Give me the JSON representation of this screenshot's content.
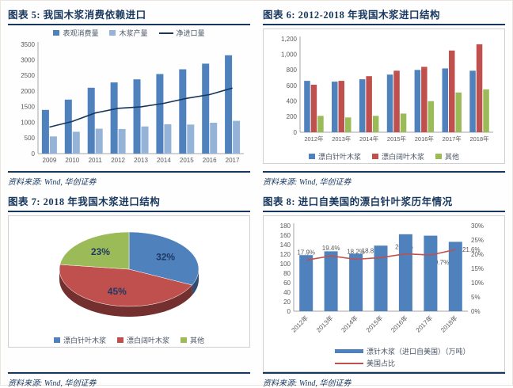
{
  "chart_data": [
    {
      "id": "figure-5",
      "type": "bar",
      "title": "图表 5: 我国木浆消费依赖进口",
      "source": "资料来源: Wind, 华创证券",
      "categories": [
        "2009",
        "2010",
        "2011",
        "2012",
        "2013",
        "2014",
        "2015",
        "2016",
        "2017"
      ],
      "series": [
        {
          "name": "表观消费量",
          "type": "bar",
          "color": "#4F81BD",
          "values": [
            1400,
            1730,
            2110,
            2280,
            2380,
            2550,
            2700,
            2880,
            3150
          ]
        },
        {
          "name": "木浆产量",
          "type": "bar",
          "color": "#95B3D7",
          "values": [
            550,
            700,
            800,
            790,
            870,
            940,
            930,
            990,
            1050
          ]
        },
        {
          "name": "净进口量",
          "type": "line",
          "color": "#17375E",
          "values": [
            850,
            1030,
            1300,
            1450,
            1500,
            1610,
            1770,
            1890,
            2100
          ]
        }
      ],
      "ylim": [
        0,
        3500
      ],
      "ytick_step": 500,
      "grid": false,
      "legend_position": "top"
    },
    {
      "id": "figure-6",
      "type": "bar",
      "title": "图表 6: 2012-2018 年我国木浆进口结构",
      "source": "资料来源: Wind, 华创证券",
      "categories": [
        "2012年",
        "2013年",
        "2014年",
        "2015年",
        "2016年",
        "2017年",
        "2018年"
      ],
      "series": [
        {
          "name": "漂白针叶木浆",
          "type": "bar",
          "color": "#4F81BD",
          "values": [
            660,
            650,
            680,
            740,
            800,
            820,
            790
          ]
        },
        {
          "name": "漂白阔叶木浆",
          "type": "bar",
          "color": "#C0504D",
          "values": [
            610,
            660,
            720,
            790,
            840,
            1050,
            1130
          ]
        },
        {
          "name": "其他",
          "type": "bar",
          "color": "#9BBB59",
          "values": [
            210,
            190,
            210,
            240,
            400,
            510,
            550
          ]
        }
      ],
      "ylim": [
        0,
        1200
      ],
      "ytick_step": 200,
      "ytick_format": "comma",
      "grid": false,
      "legend_position": "bottom"
    },
    {
      "id": "figure-7",
      "type": "pie",
      "title": "图表 7: 2018 年我国木浆进口结构",
      "source": "资料来源: Wind, 华创证券",
      "slices": [
        {
          "label": "漂白针叶木浆",
          "value": 32,
          "display": "32%",
          "color": "#4F81BD"
        },
        {
          "label": "漂白阔叶木浆",
          "value": 45,
          "display": "45%",
          "color": "#C0504D"
        },
        {
          "label": "其他",
          "value": 23,
          "display": "23%",
          "color": "#9BBB59"
        }
      ],
      "legend_position": "bottom"
    },
    {
      "id": "figure-8",
      "type": "bar",
      "title": "图表 8: 进口自美国的漂白针叶浆历年情况",
      "source": "资料来源: Wind, 华创证券",
      "categories": [
        "2012年",
        "2013年",
        "2014年",
        "2015年",
        "2016年",
        "2017年",
        "2018年"
      ],
      "series": [
        {
          "name": "漂针木浆（进口自美国）（万吨）",
          "type": "bar",
          "axis": "left",
          "color": "#4F81BD",
          "values": [
            118,
            126,
            121,
            138,
            162,
            159,
            146
          ]
        },
        {
          "name": "美国占比",
          "type": "line",
          "axis": "right",
          "color": "#C0504D",
          "values": [
            17.9,
            19.4,
            18.2,
            18.8,
            20.1,
            19.7,
            21.6
          ],
          "labels": [
            "17.9%",
            "19.4%",
            "18.2%",
            "18.8%",
            "20.1%",
            "19.7%",
            "21.6%"
          ]
        }
      ],
      "ylim": [
        0,
        180
      ],
      "ytick_step": 20,
      "ylim_right": [
        0,
        30
      ],
      "ytick_step_right": 5,
      "ytick_format_right": "percent",
      "grid": false,
      "legend_position": "bottom"
    }
  ]
}
